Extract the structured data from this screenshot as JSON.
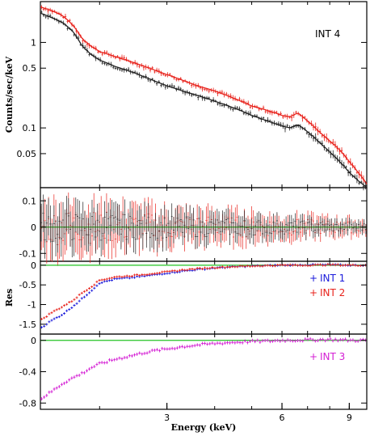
{
  "chart_data": [
    {
      "type": "scatter",
      "panel": "spectrum",
      "ylabel": "Counts/sec/keV",
      "yscale": "log",
      "xscale": "log",
      "xlim": [
        1.4,
        10.0
      ],
      "ylim": [
        0.02,
        3.0
      ],
      "yticks": [
        0.05,
        0.1,
        0.5,
        1
      ],
      "ytick_labels": [
        "0.05",
        "0.1",
        "0.5",
        "1"
      ],
      "annotation": "INT 4",
      "series": [
        {
          "color": "#e8231c",
          "x": [
            1.4,
            1.5,
            1.6,
            1.7,
            1.8,
            1.9,
            2.0,
            2.2,
            2.4,
            2.6,
            2.8,
            3.0,
            3.3,
            3.6,
            4.0,
            4.5,
            5.0,
            5.5,
            6.0,
            6.3,
            6.6,
            7.0,
            7.5,
            8.0,
            8.5,
            9.0,
            9.5,
            10.0
          ],
          "y": [
            2.6,
            2.35,
            2.05,
            1.6,
            1.1,
            0.9,
            0.78,
            0.68,
            0.6,
            0.53,
            0.47,
            0.42,
            0.36,
            0.31,
            0.27,
            0.22,
            0.18,
            0.16,
            0.14,
            0.135,
            0.15,
            0.12,
            0.09,
            0.07,
            0.055,
            0.04,
            0.03,
            0.022
          ]
        },
        {
          "color": "#222222",
          "x": [
            1.4,
            1.5,
            1.6,
            1.7,
            1.8,
            1.9,
            2.0,
            2.2,
            2.4,
            2.6,
            2.8,
            3.0,
            3.3,
            3.6,
            4.0,
            4.5,
            5.0,
            5.5,
            6.0,
            6.3,
            6.6,
            7.0,
            7.5,
            8.0,
            8.5,
            9.0,
            9.5,
            10.0
          ],
          "y": [
            2.2,
            1.95,
            1.7,
            1.35,
            0.9,
            0.72,
            0.62,
            0.52,
            0.46,
            0.4,
            0.35,
            0.31,
            0.27,
            0.24,
            0.205,
            0.17,
            0.14,
            0.12,
            0.105,
            0.1,
            0.11,
            0.09,
            0.068,
            0.052,
            0.04,
            0.03,
            0.024,
            0.02
          ]
        }
      ]
    },
    {
      "type": "scatter",
      "panel": "residuals",
      "xscale": "log",
      "xlim": [
        1.4,
        10.0
      ],
      "ylim": [
        -0.13,
        0.15
      ],
      "yticks": [
        -0.1,
        0,
        0.1
      ],
      "ytick_labels": [
        "-0.1",
        "0",
        "0.1"
      ],
      "series": [
        {
          "color": "#e8231c",
          "amplitude": [
            0.07,
            0.02
          ]
        },
        {
          "color": "#222222",
          "amplitude": [
            0.06,
            0.015
          ]
        }
      ]
    },
    {
      "type": "scatter",
      "panel": "residuals-int1-int2",
      "ylabel": "Res",
      "xscale": "log",
      "xlim": [
        1.4,
        10.0
      ],
      "ylim": [
        -1.75,
        0.1
      ],
      "yticks": [
        -1.5,
        -1,
        -0.5,
        0
      ],
      "ytick_labels": [
        "-1.5",
        "-1",
        "-0.5",
        "0"
      ],
      "series": [
        {
          "name": "INT 1",
          "color": "#1a1adb",
          "x": [
            1.4,
            1.5,
            1.6,
            1.7,
            1.8,
            1.9,
            2.0,
            2.2,
            2.4,
            2.6,
            2.8,
            3.0,
            3.3,
            3.6,
            4.0,
            4.5,
            5.0,
            5.5,
            6.0,
            7.0,
            8.0,
            9.0,
            10.0
          ],
          "y": [
            -1.6,
            -1.4,
            -1.25,
            -1.05,
            -0.85,
            -0.65,
            -0.45,
            -0.35,
            -0.32,
            -0.28,
            -0.24,
            -0.2,
            -0.15,
            -0.11,
            -0.07,
            -0.04,
            -0.02,
            -0.01,
            0.0,
            0.01,
            0.01,
            0.0,
            0.0
          ]
        },
        {
          "name": "INT 2",
          "color": "#e8231c",
          "x": [
            1.4,
            1.5,
            1.6,
            1.7,
            1.8,
            1.9,
            2.0,
            2.2,
            2.4,
            2.6,
            2.8,
            3.0,
            3.3,
            3.6,
            4.0,
            4.5,
            5.0,
            5.5,
            6.0,
            7.0,
            8.0,
            9.0,
            10.0
          ],
          "y": [
            -1.4,
            -1.2,
            -1.05,
            -0.9,
            -0.7,
            -0.55,
            -0.38,
            -0.3,
            -0.27,
            -0.24,
            -0.2,
            -0.17,
            -0.12,
            -0.09,
            -0.06,
            -0.035,
            -0.02,
            -0.01,
            0.0,
            0.0,
            0.01,
            0.0,
            0.0
          ]
        }
      ]
    },
    {
      "type": "scatter",
      "panel": "residuals-int3",
      "xlabel": "Energy (keV)",
      "xscale": "log",
      "xlim": [
        1.4,
        10.0
      ],
      "ylim": [
        -0.88,
        0.08
      ],
      "yticks": [
        -0.8,
        -0.4,
        0
      ],
      "ytick_labels": [
        "-0.8",
        "-0.4",
        "0"
      ],
      "xticks": [
        3,
        6,
        9
      ],
      "xtick_labels": [
        "3",
        "6",
        "9"
      ],
      "series": [
        {
          "name": "INT 3",
          "color": "#d41fd4",
          "x": [
            1.4,
            1.5,
            1.6,
            1.7,
            1.8,
            1.9,
            2.0,
            2.2,
            2.4,
            2.6,
            2.8,
            3.0,
            3.3,
            3.6,
            4.0,
            4.5,
            5.0,
            5.5,
            6.0,
            7.0,
            8.0,
            9.0,
            10.0
          ],
          "y": [
            -0.75,
            -0.65,
            -0.55,
            -0.48,
            -0.42,
            -0.35,
            -0.3,
            -0.24,
            -0.2,
            -0.16,
            -0.13,
            -0.11,
            -0.08,
            -0.06,
            -0.04,
            -0.025,
            -0.015,
            -0.01,
            0.0,
            0.005,
            0.01,
            0.0,
            0.0
          ]
        }
      ]
    }
  ],
  "colors": {
    "zero_line": "#22c322",
    "axis": "#000000"
  }
}
